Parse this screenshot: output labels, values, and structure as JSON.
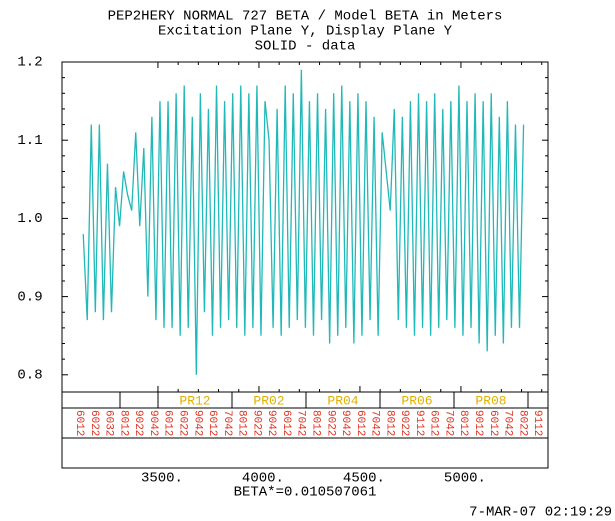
{
  "chart_data": {
    "type": "line",
    "title": "PEP2HERY NORMAL  727 BETA / Model BETA in Meters",
    "subtitle": "Excitation Plane Y, Display Plane Y",
    "x_label": "BETA*=0.010507061",
    "timestamp": "7-MAR-07 02:19:29",
    "xlim": [
      3025,
      5431
    ],
    "ylim": [
      0.778,
      1.2
    ],
    "xticks": [
      {
        "value": 3500,
        "label": "3500."
      },
      {
        "value": 4000,
        "label": "4000."
      },
      {
        "value": 4500,
        "label": "4500."
      },
      {
        "value": 5000,
        "label": "5000."
      }
    ],
    "yticks": [
      0.8,
      0.9,
      {
        "value": 1,
        "label": "1.0"
      },
      1.1,
      1.2
    ],
    "x": [
      3130,
      3150,
      3170,
      3190,
      3210,
      3230,
      3250,
      3270,
      3290,
      3310,
      3330,
      3350,
      3370,
      3390,
      3410,
      3430,
      3450,
      3470,
      3490,
      3510,
      3530,
      3550,
      3570,
      3590,
      3610,
      3630,
      3650,
      3670,
      3690,
      3710,
      3730,
      3750,
      3770,
      3790,
      3810,
      3830,
      3850,
      3870,
      3890,
      3910,
      3930,
      3950,
      3970,
      3990,
      4010,
      4030,
      4050,
      4070,
      4090,
      4110,
      4130,
      4150,
      4170,
      4190,
      4210,
      4230,
      4250,
      4270,
      4290,
      4310,
      4330,
      4350,
      4370,
      4390,
      4410,
      4430,
      4450,
      4470,
      4490,
      4510,
      4530,
      4550,
      4570,
      4590,
      4610,
      4630,
      4650,
      4670,
      4690,
      4710,
      4730,
      4750,
      4770,
      4790,
      4810,
      4830,
      4850,
      4870,
      4890,
      4910,
      4930,
      4950,
      4970,
      4990,
      5010,
      5030,
      5050,
      5070,
      5090,
      5110,
      5130,
      5150,
      5170,
      5190,
      5210,
      5230,
      5250,
      5270,
      5290,
      5310
    ],
    "series": [
      {
        "name": "SOLID  - data",
        "color": "#20b8b8",
        "values": [
          0.98,
          0.87,
          1.12,
          0.88,
          1.12,
          0.87,
          1.07,
          0.88,
          1.04,
          0.99,
          1.06,
          1.03,
          1.01,
          1.11,
          0.99,
          1.09,
          0.9,
          1.13,
          0.87,
          1.15,
          0.86,
          1.15,
          0.86,
          1.16,
          0.85,
          1.17,
          0.86,
          1.13,
          0.8,
          1.16,
          0.88,
          1.14,
          0.85,
          1.17,
          0.86,
          1.15,
          0.87,
          1.16,
          0.86,
          1.17,
          0.85,
          1.16,
          0.86,
          1.17,
          0.85,
          1.15,
          1.1,
          0.86,
          1.14,
          0.85,
          1.17,
          0.86,
          1.16,
          0.87,
          1.19,
          0.86,
          1.15,
          0.85,
          1.16,
          0.87,
          1.14,
          0.84,
          1.16,
          0.85,
          1.17,
          0.86,
          1.15,
          0.84,
          1.16,
          0.85,
          1.15,
          0.87,
          1.13,
          0.85,
          1.11,
          1.06,
          1.01,
          1.14,
          0.87,
          1.13,
          0.86,
          1.15,
          0.85,
          1.16,
          0.86,
          1.15,
          0.85,
          1.16,
          0.86,
          1.14,
          0.87,
          1.15,
          0.86,
          1.17,
          0.85,
          1.15,
          0.86,
          1.16,
          0.84,
          1.15,
          0.83,
          1.16,
          0.85,
          1.13,
          0.84,
          1.15,
          0.86,
          1.12,
          0.86,
          1.12
        ]
      }
    ],
    "regions": [
      "PR12",
      "PR02",
      "PR04",
      "PR06",
      "PR08"
    ],
    "elements": [
      "6012",
      "6022",
      "6032",
      "8012",
      "9022",
      "9042",
      "6012",
      "6022",
      "9042",
      "6012",
      "7042",
      "8012",
      "9022",
      "9042",
      "6012",
      "7042",
      "8012",
      "9022",
      "9042",
      "6012",
      "7042",
      "8012",
      "9022",
      "9112",
      "6012",
      "7042",
      "8012",
      "9012",
      "6012",
      "7042",
      "8022",
      "9112"
    ]
  }
}
